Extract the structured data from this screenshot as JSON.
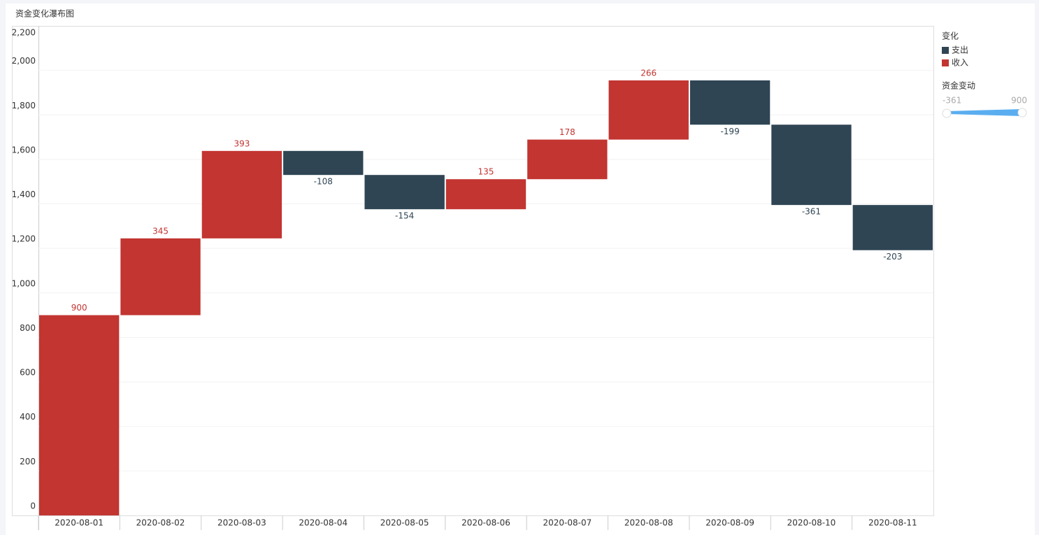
{
  "chart_data": {
    "type": "waterfall",
    "title": "资金变化瀑布图",
    "categories": [
      "2020-08-01",
      "2020-08-02",
      "2020-08-03",
      "2020-08-04",
      "2020-08-05",
      "2020-08-06",
      "2020-08-07",
      "2020-08-08",
      "2020-08-09",
      "2020-08-10",
      "2020-08-11"
    ],
    "series": [
      {
        "name": "支出",
        "color": "#2f4554",
        "values": [
          null,
          null,
          null,
          -108,
          -154,
          null,
          null,
          null,
          -199,
          -361,
          -203
        ]
      },
      {
        "name": "收入",
        "color": "#c23531",
        "values": [
          900,
          345,
          393,
          null,
          null,
          135,
          178,
          266,
          null,
          null,
          null
        ]
      }
    ],
    "legend_title": "变化",
    "size_legend": {
      "title": "资金变动",
      "min": -361,
      "max": 900
    },
    "ylim": [
      0,
      2200
    ],
    "yticks": [
      0,
      200,
      400,
      600,
      800,
      {
        "value": 1000,
        "label": "1,000"
      },
      {
        "value": 1200,
        "label": "1,200"
      },
      {
        "value": 1400,
        "label": "1,400"
      },
      {
        "value": 1600,
        "label": "1,600"
      },
      {
        "value": 1800,
        "label": "1,800"
      },
      {
        "value": 2000,
        "label": "2,000"
      },
      {
        "value": 2200,
        "label": "2,200"
      }
    ],
    "grid": true
  }
}
